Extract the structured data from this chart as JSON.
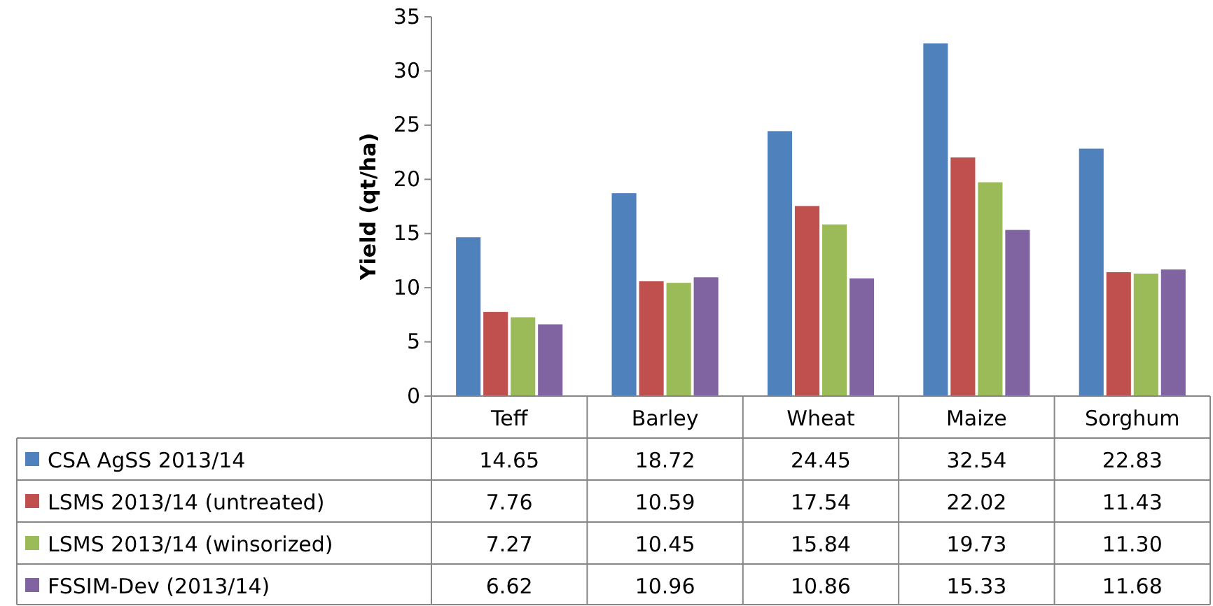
{
  "chart_data": {
    "type": "bar",
    "ylabel": "Yield (qt/ha)",
    "categories": [
      "Teff",
      "Barley",
      "Wheat",
      "Maize",
      "Sorghum"
    ],
    "series": [
      {
        "name": "CSA AgSS 2013/14",
        "color": "#4f81bd",
        "values": [
          14.65,
          18.72,
          24.45,
          32.54,
          22.83
        ],
        "value_labels": [
          "14.65",
          "18.72",
          "24.45",
          "32.54",
          "22.83"
        ]
      },
      {
        "name": "LSMS 2013/14 (untreated)",
        "color": "#c0504d",
        "values": [
          7.76,
          10.59,
          17.54,
          22.02,
          11.43
        ],
        "value_labels": [
          "7.76",
          "10.59",
          "17.54",
          "22.02",
          "11.43"
        ]
      },
      {
        "name": "LSMS 2013/14 (winsorized)",
        "color": "#9bbb59",
        "values": [
          7.27,
          10.45,
          15.84,
          19.73,
          11.3
        ],
        "value_labels": [
          "7.27",
          "10.45",
          "15.84",
          "19.73",
          "11.30"
        ]
      },
      {
        "name": "FSSIM-Dev (2013/14)",
        "color": "#8064a2",
        "values": [
          6.62,
          10.96,
          10.86,
          15.33,
          11.68
        ],
        "value_labels": [
          "6.62",
          "10.96",
          "10.86",
          "15.33",
          "11.68"
        ]
      }
    ],
    "ylim": [
      0,
      35
    ],
    "yticks": [
      0,
      5,
      10,
      15,
      20,
      25,
      30,
      35
    ],
    "grid": false,
    "legend": "bottom"
  }
}
